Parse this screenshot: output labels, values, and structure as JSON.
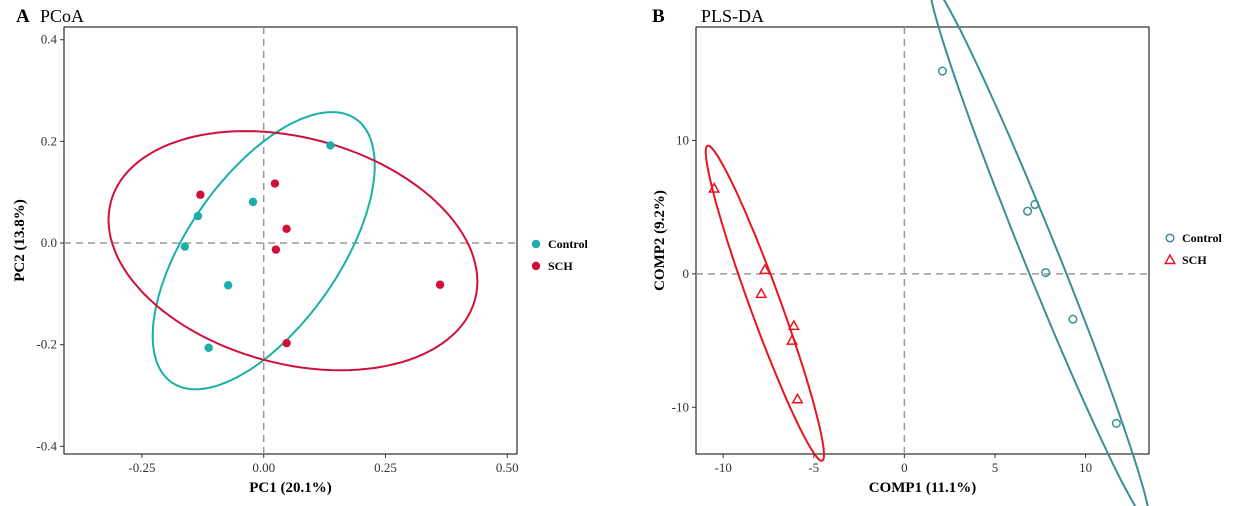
{
  "chart_data": [
    {
      "type": "scatter",
      "panel_letter": "A",
      "title": "PCoA",
      "xlabel": "PC1 (20.1%)",
      "ylabel": "PC2 (13.8%)",
      "xlim": [
        -0.41,
        0.52
      ],
      "ylim": [
        -0.415,
        0.425
      ],
      "xticks": [
        -0.25,
        0.0,
        0.25,
        0.5
      ],
      "xtick_labels": [
        "-0.25",
        "0.00",
        "0.25",
        "0.50"
      ],
      "yticks": [
        -0.4,
        -0.2,
        0.0,
        0.2,
        0.4
      ],
      "ytick_labels": [
        "-0.4",
        "-0.2",
        "0.0",
        "0.2",
        "0.4"
      ],
      "reference_lines": {
        "x": 0,
        "y": 0
      },
      "grid": false,
      "legend_position": "right",
      "series": [
        {
          "name": "Control",
          "color": "#1aafa8",
          "marker": "filled-circle",
          "points": [
            [
              0.137,
              0.192
            ],
            [
              -0.135,
              0.053
            ],
            [
              -0.022,
              0.081
            ],
            [
              -0.162,
              -0.007
            ],
            [
              -0.073,
              -0.083
            ],
            [
              -0.113,
              -0.206
            ]
          ],
          "ellipse": {
            "center": [
              0.0,
              -0.015
            ],
            "rx": 0.33,
            "ry": 0.155,
            "rotation_deg": 55
          }
        },
        {
          "name": "SCH",
          "color": "#d0103a",
          "marker": "filled-circle",
          "points": [
            [
              -0.13,
              0.095
            ],
            [
              0.023,
              0.117
            ],
            [
              0.047,
              0.028
            ],
            [
              0.025,
              -0.013
            ],
            [
              0.362,
              -0.082
            ],
            [
              0.047,
              -0.197
            ]
          ],
          "ellipse": {
            "center": [
              0.06,
              -0.015
            ],
            "rx": 0.387,
            "ry": 0.232,
            "rotation_deg": -15
          }
        }
      ]
    },
    {
      "type": "scatter",
      "panel_letter": "B",
      "title": "PLS-DA",
      "xlabel": "COMP1 (11.1%)",
      "ylabel": "COMP2 (9.2%)",
      "xlim": [
        -11.5,
        13.5
      ],
      "ylim": [
        -13.5,
        18.5
      ],
      "xticks": [
        -10,
        -5,
        0,
        5,
        10
      ],
      "xtick_labels": [
        "-10",
        "-5",
        "0",
        "5",
        "10"
      ],
      "yticks": [
        -10,
        0,
        10
      ],
      "ytick_labels": [
        "-10",
        "0",
        "10"
      ],
      "reference_lines": {
        "x": 0,
        "y": 0
      },
      "grid": false,
      "legend_position": "right",
      "series": [
        {
          "name": "Control",
          "color": "#3a8e9c",
          "marker": "open-circle",
          "points": [
            [
              2.1,
              15.2
            ],
            [
              6.8,
              4.7
            ],
            [
              7.2,
              5.2
            ],
            [
              7.8,
              0.1
            ],
            [
              9.3,
              -3.4
            ],
            [
              11.7,
              -11.2
            ]
          ],
          "ellipse": {
            "center": [
              7.46,
              1.57
            ],
            "rx": 16.0,
            "ry": 0.95,
            "rotation_deg": -68
          }
        },
        {
          "name": "SCH",
          "color": "#e8141f",
          "marker": "open-triangle",
          "points": [
            [
              -10.5,
              6.4
            ],
            [
              -7.7,
              0.3
            ],
            [
              -7.9,
              -1.5
            ],
            [
              -6.1,
              -3.9
            ],
            [
              -6.2,
              -5.0
            ],
            [
              -5.9,
              -9.4
            ]
          ],
          "ellipse": {
            "center": [
              -7.7,
              -2.2
            ],
            "rx": 9.25,
            "ry": 0.85,
            "rotation_deg": -70
          }
        }
      ]
    }
  ]
}
